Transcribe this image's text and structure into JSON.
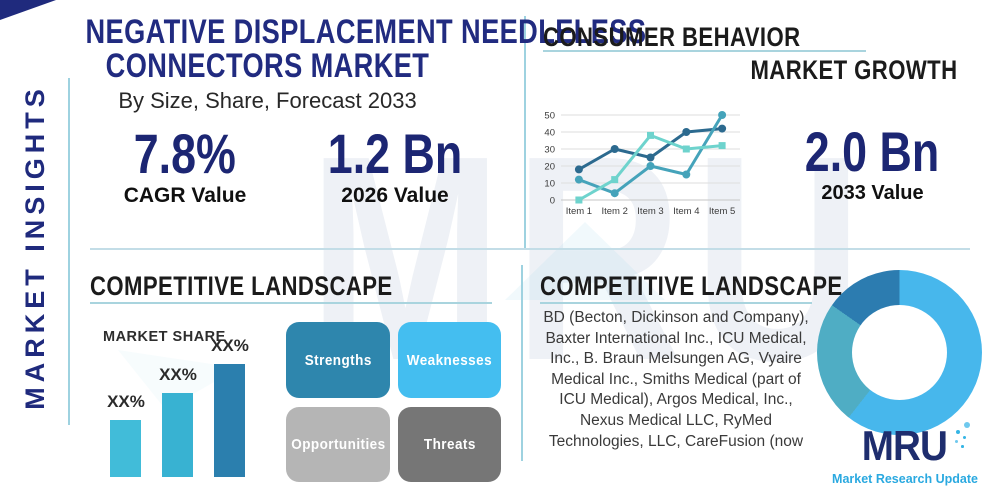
{
  "brand": {
    "abbr": "MRU",
    "tagline": "Market Research Update",
    "watermark": "MRU"
  },
  "colors": {
    "navy": "#1f2a7d",
    "stat_navy": "#1c2673",
    "heading_black": "#1b1b1b",
    "divider_teal": "#9ed2e0",
    "logo_navy": "#1e2d6e",
    "logo_teal": "#2aa9e0"
  },
  "left_panel": {
    "side_label": "MARKET INSIGHTS",
    "title_line1": "NEGATIVE DISPLACEMENT NEEDLELESS",
    "title_line2": "CONNECTORS MARKET",
    "subtitle": "By Size, Share, Forecast 2033",
    "stats": [
      {
        "value": "7.8%",
        "label": "CAGR Value"
      },
      {
        "value": "1.2 Bn",
        "label": "2026 Value"
      }
    ]
  },
  "consumer_behavior": {
    "heading": "CONSUMER BEHAVIOR",
    "subheading": "MARKET GROWTH",
    "stat": {
      "value": "2.0 Bn",
      "label": "2033 Value"
    }
  },
  "competitive_landscape_left": {
    "heading": "COMPETITIVE LANDSCAPE",
    "chart_title": "MARKET SHARE",
    "swot": [
      {
        "label": "Strengths",
        "color": "#2e86ad"
      },
      {
        "label": "Weaknesses",
        "color": "#44bef0"
      },
      {
        "label": "Opportunities",
        "color": "#b5b5b5"
      },
      {
        "label": "Threats",
        "color": "#767676"
      }
    ]
  },
  "competitive_landscape_right": {
    "heading": "COMPETITIVE LANDSCAPE",
    "company_lines": [
      "BD (Becton, Dickinson and Company),",
      "Baxter International Inc., ICU Medical,",
      "Inc., B. Braun Melsungen AG, Vyaire",
      "Medical Inc., Smiths Medical (part of",
      "ICU Medical), Argos Medical, Inc.,",
      "Nexus Medical LLC, RyMed",
      "Technologies, LLC, CareFusion (now"
    ]
  },
  "chart_data": [
    {
      "id": "consumer-behavior-line",
      "type": "line",
      "title": "CONSUMER BEHAVIOR",
      "x": [
        "Item 1",
        "Item 2",
        "Item 3",
        "Item 4",
        "Item 5"
      ],
      "series": [
        {
          "name": "series-1",
          "color": "#2c6a8f",
          "marker": "circle",
          "values": [
            18,
            30,
            25,
            40,
            42
          ]
        },
        {
          "name": "series-2",
          "color": "#45a3ba",
          "marker": "circle",
          "values": [
            12,
            4,
            20,
            15,
            50
          ]
        },
        {
          "name": "series-3",
          "color": "#6ed3cd",
          "marker": "square",
          "values": [
            0,
            12,
            38,
            30,
            32
          ]
        }
      ],
      "ylim": [
        0,
        50
      ],
      "yticks": [
        0,
        10,
        20,
        30,
        40,
        50
      ],
      "grid": true,
      "legend": "none"
    },
    {
      "id": "market-share-bar",
      "type": "bar",
      "title": "MARKET SHARE",
      "categories": [
        "bar-1",
        "bar-2",
        "bar-3"
      ],
      "labels": [
        "XX%",
        "XX%",
        "XX%"
      ],
      "relative_values": [
        50,
        74,
        100
      ],
      "colors": [
        "#41bcd9",
        "#38b2d2",
        "#2b7fae"
      ]
    },
    {
      "id": "company-share-donut",
      "type": "pie",
      "donut_hole_ratio": 0.57,
      "segments": [
        {
          "name": "segment-1",
          "sweep_deg": 218,
          "color": "#47b7ec"
        },
        {
          "name": "segment-2",
          "sweep_deg": 87,
          "color": "#4fadc4"
        },
        {
          "name": "segment-3",
          "sweep_deg": 55,
          "color": "#2c7cb0"
        }
      ]
    }
  ]
}
